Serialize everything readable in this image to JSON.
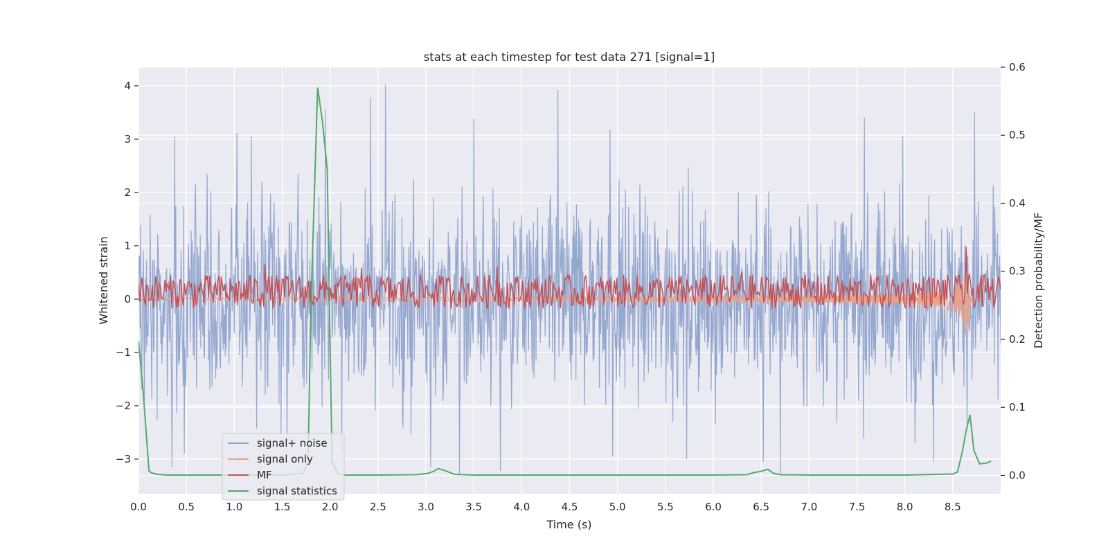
{
  "chart_data": {
    "type": "line",
    "title": "stats at each timestep for test data 271 [signal=1]",
    "xlabel": "Time (s)",
    "ylabel": "Whitened strain",
    "y2label": "Detection probability/MF",
    "xlim": [
      0.0,
      9.0
    ],
    "ylim": [
      -3.65,
      4.35
    ],
    "y2lim": [
      -0.027,
      0.6
    ],
    "grid": true,
    "legend_position": "lower-left",
    "x_ticks": [
      0.0,
      0.5,
      1.0,
      1.5,
      2.0,
      2.5,
      3.0,
      3.5,
      4.0,
      4.5,
      5.0,
      5.5,
      6.0,
      6.5,
      7.0,
      7.5,
      8.0,
      8.5
    ],
    "x_tick_labels": [
      "0.0",
      "0.5",
      "1.0",
      "1.5",
      "2.0",
      "2.5",
      "3.0",
      "3.5",
      "4.0",
      "4.5",
      "5.0",
      "5.5",
      "6.0",
      "6.5",
      "7.0",
      "7.5",
      "8.0",
      "8.5"
    ],
    "y_ticks": [
      -3,
      -2,
      -1,
      0,
      1,
      2,
      3,
      4
    ],
    "y_tick_labels": [
      "−3",
      "−2",
      "−1",
      "0",
      "1",
      "2",
      "3",
      "4"
    ],
    "y2_ticks": [
      0.0,
      0.1,
      0.2,
      0.3,
      0.4,
      0.5,
      0.6
    ],
    "y2_tick_labels": [
      "0.0",
      "0.1",
      "0.2",
      "0.3",
      "0.4",
      "0.5",
      "0.6"
    ],
    "series": [
      {
        "name": "signal+ noise",
        "color": "#8fa3cc",
        "axis": "left",
        "kind": "noise",
        "sample_rate_hz": 180,
        "std": 0.9,
        "peaks": [
          {
            "x": 0.38,
            "y": 3.05
          },
          {
            "x": 1.03,
            "y": 3.12
          },
          {
            "x": 1.18,
            "y": 3.05
          },
          {
            "x": 1.95,
            "y": 3.55
          },
          {
            "x": 2.42,
            "y": 3.78
          },
          {
            "x": 2.58,
            "y": 4.02
          },
          {
            "x": 3.5,
            "y": 3.38
          },
          {
            "x": 4.38,
            "y": 3.92
          },
          {
            "x": 4.92,
            "y": 3.18
          },
          {
            "x": 7.58,
            "y": 3.4
          },
          {
            "x": 7.98,
            "y": 3.05
          },
          {
            "x": 8.73,
            "y": 3.5
          },
          {
            "x": 0.35,
            "y": -3.15
          },
          {
            "x": 3.05,
            "y": -3.15
          },
          {
            "x": 3.35,
            "y": -3.3
          },
          {
            "x": 3.78,
            "y": -3.22
          },
          {
            "x": 4.95,
            "y": -2.95
          },
          {
            "x": 6.7,
            "y": -3.3
          },
          {
            "x": 6.52,
            "y": -3.05
          },
          {
            "x": 1.55,
            "y": -2.7
          },
          {
            "x": 2.12,
            "y": -2.9
          },
          {
            "x": 0.48,
            "y": -2.9
          },
          {
            "x": 5.72,
            "y": -3.0
          },
          {
            "x": 8.3,
            "y": -3.05
          }
        ]
      },
      {
        "name": "signal only",
        "color": "#e8a28a",
        "axis": "left",
        "kind": "chirp",
        "merger_time": 8.66,
        "peak_amplitude": 0.9
      },
      {
        "name": "MF",
        "color": "#c44e52",
        "axis": "right",
        "kind": "noisy-baseline",
        "baseline": 0.27,
        "spread": 0.025,
        "spikes": [
          {
            "x": 1.32,
            "y": 0.31
          },
          {
            "x": 2.33,
            "y": 0.305
          },
          {
            "x": 3.75,
            "y": 0.307
          },
          {
            "x": 6.3,
            "y": 0.3
          },
          {
            "x": 8.64,
            "y": 0.336
          }
        ]
      },
      {
        "name": "signal statistics",
        "color": "#55a868",
        "axis": "right",
        "kind": "line",
        "x": [
          0.0,
          0.05,
          0.11,
          0.15,
          0.2,
          0.3,
          0.5,
          1.0,
          1.5,
          1.72,
          1.77,
          1.8,
          1.87,
          1.92,
          1.97,
          2.02,
          2.08,
          2.15,
          2.5,
          2.9,
          3.02,
          3.08,
          3.13,
          3.2,
          3.3,
          3.5,
          4.0,
          5.0,
          6.0,
          6.35,
          6.42,
          6.5,
          6.57,
          6.63,
          6.7,
          7.0,
          8.0,
          8.5,
          8.55,
          8.6,
          8.64,
          8.68,
          8.72,
          8.78,
          8.85,
          8.9
        ],
        "values": [
          0.198,
          0.12,
          0.006,
          0.003,
          0.0015,
          0.0005,
          0.0005,
          0.0005,
          0.0005,
          0.003,
          0.02,
          0.25,
          0.57,
          0.52,
          0.45,
          0.02,
          0.003,
          0.0005,
          0.0005,
          0.001,
          0.003,
          0.006,
          0.01,
          0.007,
          0.0015,
          0.0005,
          0.0005,
          0.0005,
          0.0005,
          0.001,
          0.004,
          0.006,
          0.009,
          0.003,
          0.001,
          0.0005,
          0.0005,
          0.002,
          0.005,
          0.035,
          0.066,
          0.089,
          0.037,
          0.017,
          0.018,
          0.021
        ]
      }
    ]
  }
}
